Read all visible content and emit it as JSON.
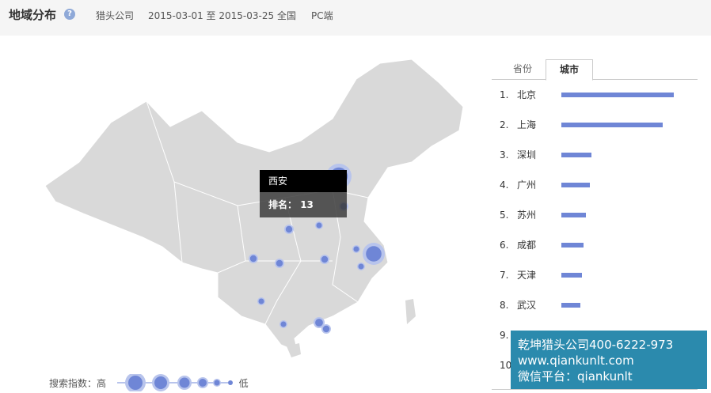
{
  "header": {
    "title": "地域分布",
    "help_icon": "question-icon",
    "company": "猎头公司",
    "date_range": "2015-03-01 至 2015-03-25",
    "region": "全国",
    "platform": "PC端"
  },
  "tooltip": {
    "city": "西安",
    "rank_label": "排名：",
    "rank": "13"
  },
  "legend": {
    "label": "搜索指数：高",
    "low": "低"
  },
  "tabs": [
    {
      "label": "省份",
      "active": false
    },
    {
      "label": "城市",
      "active": true
    }
  ],
  "ranking": [
    {
      "rank": "1.",
      "city": "北京",
      "level": 1.0
    },
    {
      "rank": "2.",
      "city": "上海",
      "level": 0.9
    },
    {
      "rank": "3.",
      "city": "深圳",
      "level": 0.27
    },
    {
      "rank": "4.",
      "city": "广州",
      "level": 0.25
    },
    {
      "rank": "5.",
      "city": "苏州",
      "level": 0.22
    },
    {
      "rank": "6.",
      "city": "成都",
      "level": 0.2
    },
    {
      "rank": "7.",
      "city": "天津",
      "level": 0.18
    },
    {
      "rank": "8.",
      "city": "武汉",
      "level": 0.17
    },
    {
      "rank": "9.",
      "city": "",
      "level": 0
    },
    {
      "rank": "10",
      "city": "",
      "level": 0
    }
  ],
  "banner": {
    "line1": "乾坤猎头公司400-6222-973",
    "line2": "www.qiankunlt.com",
    "line3": "微信平台：qiankunlt"
  },
  "colors": {
    "bubble": "#6f86d6",
    "map": "#d9d9d9",
    "banner": "#2b8aad"
  }
}
